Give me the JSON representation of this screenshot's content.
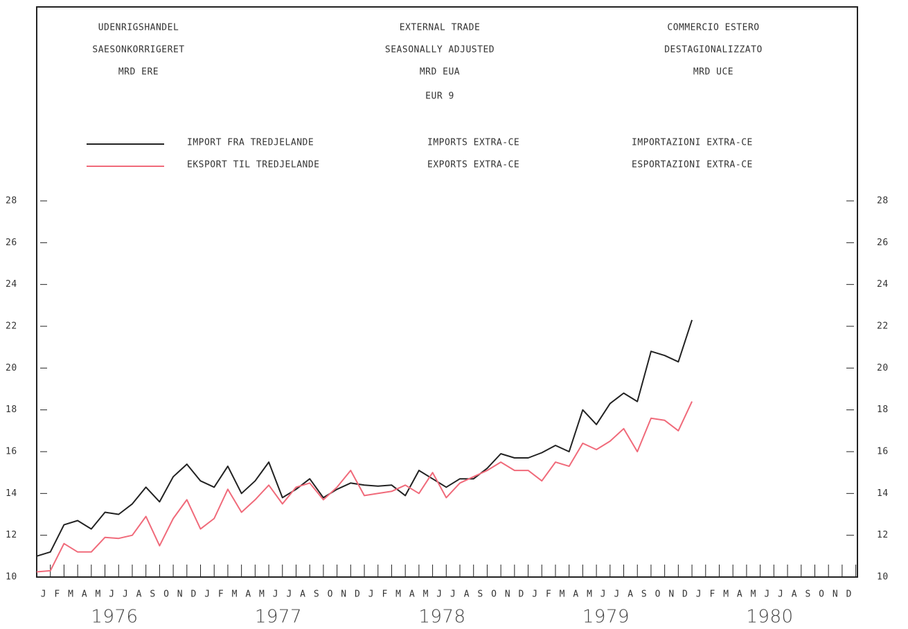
{
  "chart_data": {
    "type": "line",
    "title_blocks": [
      [
        "UDENRIGSHANDEL",
        "SAESONKORRIGERET",
        "MRD ERE"
      ],
      [
        "EXTERNAL TRADE",
        "SEASONALLY ADJUSTED",
        "MRD EUA"
      ],
      [
        "COMMERCIO ESTERO",
        "DESTAGIONALIZZATO",
        "MRD UCE"
      ]
    ],
    "subtitle": "EUR 9",
    "categories": [
      null,
      "J",
      "F",
      "M",
      "A",
      "M",
      "J",
      "J",
      "A",
      "S",
      "O",
      "N",
      "D",
      "J",
      "F",
      "M",
      "A",
      "M",
      "J",
      "J",
      "A",
      "S",
      "O",
      "N",
      "D",
      "J",
      "F",
      "M",
      "A",
      "M",
      "J",
      "J",
      "A",
      "S",
      "O",
      "N",
      "D",
      "J",
      "F",
      "M",
      "A",
      "M",
      "J",
      "J",
      "A",
      "S",
      "O",
      "N",
      "D",
      "J",
      "F",
      "M",
      "A",
      "M",
      "J",
      "J",
      "A",
      "S",
      "O",
      "N",
      "D"
    ],
    "years": [
      "1976",
      "1977",
      "1978",
      "1979",
      "1980"
    ],
    "series": [
      {
        "name": "IMPORT FRA TREDJELANDE",
        "name_en": "IMPORTS EXTRA-CE",
        "name_it": "IMPORTAZIONI EXTRA-CE",
        "color": "#222222",
        "values": [
          11.0,
          11.2,
          12.5,
          12.7,
          12.3,
          13.1,
          13.0,
          13.5,
          14.3,
          13.6,
          14.8,
          15.4,
          14.6,
          14.3,
          15.3,
          14.0,
          14.6,
          15.5,
          13.8,
          14.2,
          14.7,
          13.8,
          14.2,
          14.5,
          14.4,
          14.35,
          14.4,
          13.9,
          15.1,
          14.7,
          14.3,
          14.7,
          14.7,
          15.2,
          15.9,
          15.7,
          15.7,
          15.95,
          16.3,
          16.0,
          18.0,
          17.3,
          18.3,
          18.8,
          18.4,
          20.8,
          20.6,
          20.3,
          22.3,
          null,
          null,
          null,
          null,
          null,
          null,
          null,
          null,
          null,
          null,
          null,
          null
        ]
      },
      {
        "name": "EKSPORT TIL TREDJELANDE",
        "name_en": "EXPORTS EXTRA-CE",
        "name_it": "ESPORTAZIONI EXTRA-CE",
        "color": "#f06a7a",
        "values": [
          10.25,
          10.3,
          11.6,
          11.2,
          11.2,
          11.9,
          11.85,
          12.0,
          12.9,
          11.5,
          12.8,
          13.7,
          12.3,
          12.8,
          14.2,
          13.1,
          13.7,
          14.4,
          13.5,
          14.3,
          14.5,
          13.7,
          14.3,
          15.1,
          13.9,
          14.0,
          14.1,
          14.4,
          14.0,
          15.0,
          13.8,
          14.5,
          14.8,
          15.1,
          15.5,
          15.1,
          15.1,
          14.6,
          15.5,
          15.3,
          16.4,
          16.1,
          16.5,
          17.1,
          16.0,
          17.6,
          17.5,
          17.0,
          18.4,
          null,
          null,
          null,
          null,
          null,
          null,
          null,
          null,
          null,
          null,
          null,
          null
        ]
      }
    ],
    "ylim": [
      10,
      28
    ],
    "yticks": [
      10,
      12,
      14,
      16,
      18,
      20,
      22,
      24,
      26,
      28
    ]
  }
}
